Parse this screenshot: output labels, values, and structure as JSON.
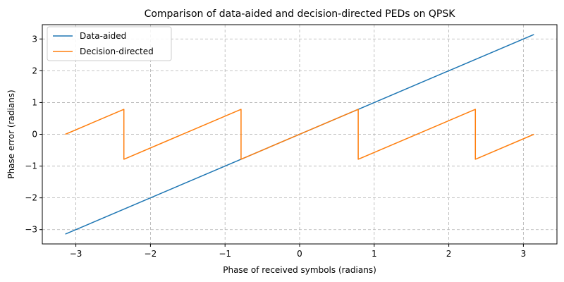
{
  "chart_data": {
    "type": "line",
    "title": "Comparison of data-aided and decision-directed PEDs on QPSK",
    "xlabel": "Phase of received symbols (radians)",
    "ylabel": "Phase error (radians)",
    "xlim": [
      -3.45,
      3.45
    ],
    "ylim": [
      -3.45,
      3.45
    ],
    "xticks": [
      -3,
      -2,
      -1,
      0,
      1,
      2,
      3
    ],
    "yticks": [
      -3,
      -2,
      -1,
      0,
      1,
      2,
      3
    ],
    "xtick_labels": [
      "−3",
      "−2",
      "−1",
      "0",
      "1",
      "2",
      "3"
    ],
    "ytick_labels": [
      "−3",
      "−2",
      "−1",
      "0",
      "1",
      "2",
      "3"
    ],
    "grid": true,
    "legend_position": "top-left",
    "series": [
      {
        "name": "Data-aided",
        "color": "#1f77b4",
        "x": [
          -3.1416,
          3.1416
        ],
        "y": [
          -3.1416,
          3.1416
        ]
      },
      {
        "name": "Decision-directed",
        "color": "#ff7f0e",
        "x": [
          -3.1416,
          -2.3562,
          -2.3562,
          -0.7854,
          -0.7854,
          0.7854,
          0.7854,
          2.3562,
          2.3562,
          3.1416
        ],
        "y": [
          0.0,
          0.7854,
          -0.7854,
          0.7854,
          -0.7854,
          0.7854,
          -0.7854,
          0.7854,
          -0.7854,
          0.0
        ]
      }
    ]
  }
}
